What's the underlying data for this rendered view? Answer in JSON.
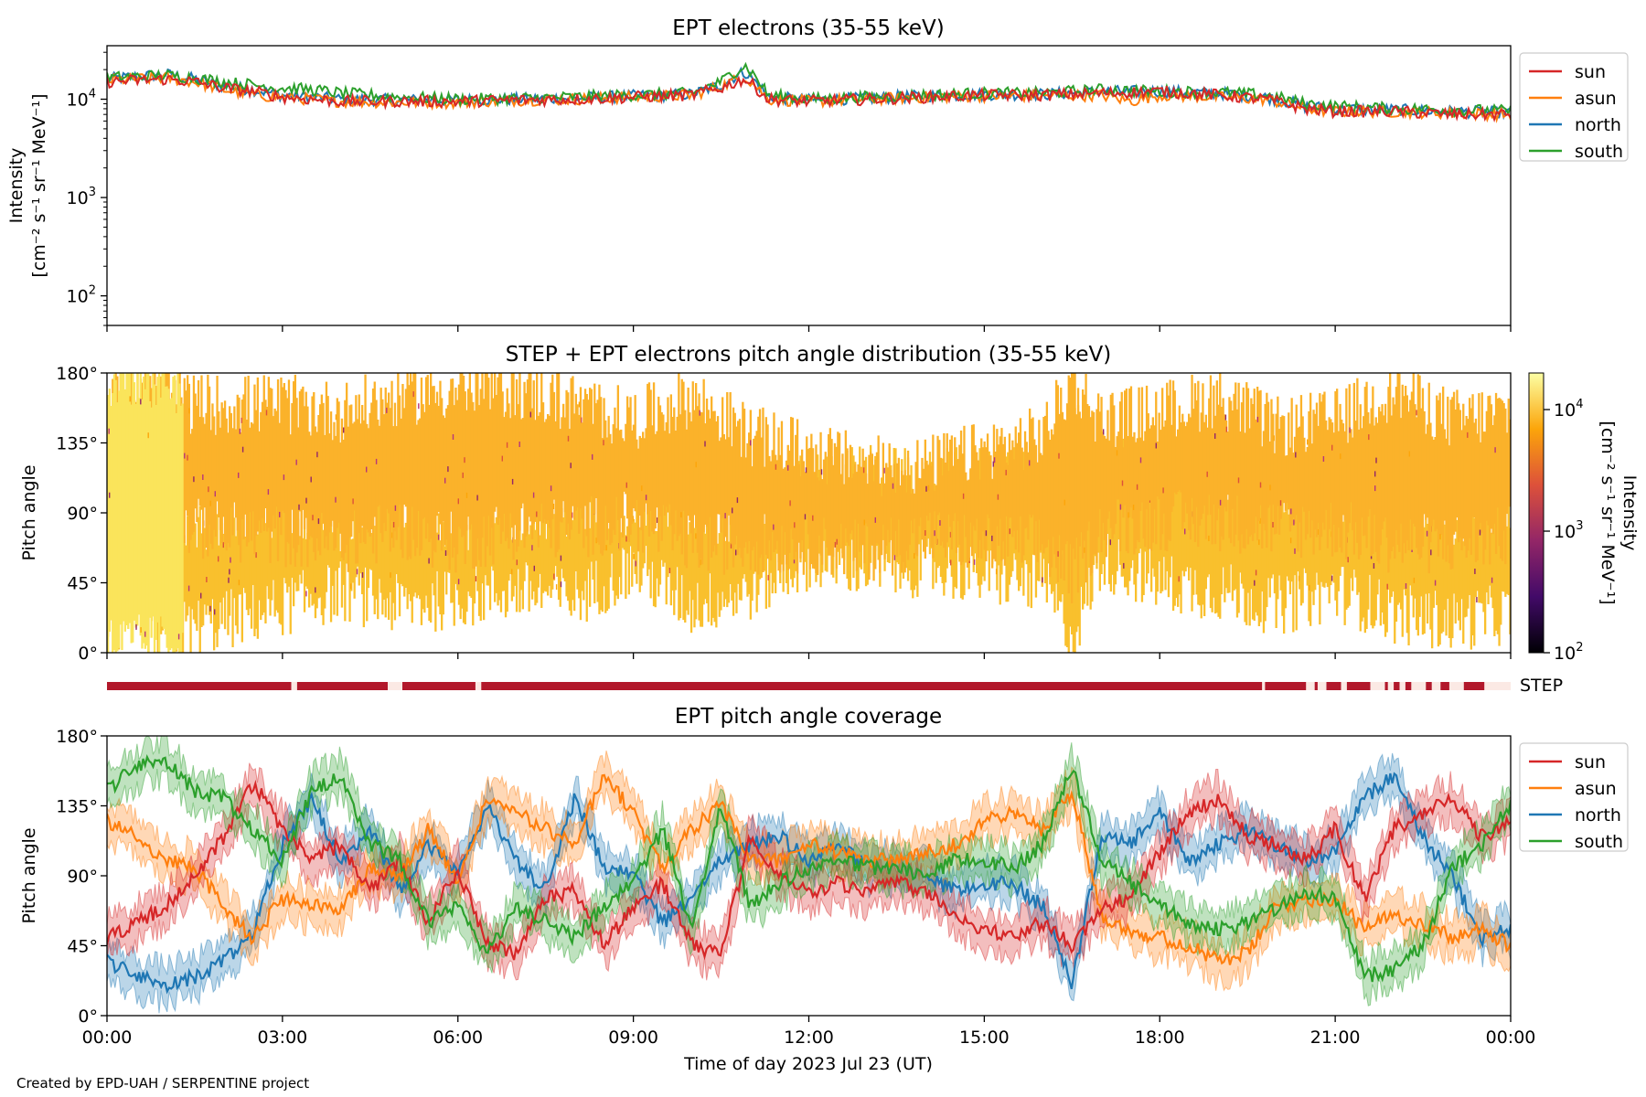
{
  "chart_data": [
    {
      "type": "line",
      "title": "EPT electrons (35-55 keV)",
      "ylabel_line1": "Intensity",
      "ylabel_line2": "[cm⁻² s⁻¹ sr⁻¹ MeV⁻¹]",
      "yscale": "log",
      "ylim": [
        50,
        35000
      ],
      "yticks": [
        {
          "value": 100,
          "base": "10",
          "exp": "2"
        },
        {
          "value": 1000,
          "base": "10",
          "exp": "3"
        },
        {
          "value": 10000,
          "base": "10",
          "exp": "4"
        }
      ],
      "xlim_hours": [
        0,
        24
      ],
      "legend": "upper-right-outside",
      "series": [
        {
          "name": "sun",
          "color": "#d62728",
          "x": [
            0,
            1,
            1.5,
            2,
            2.5,
            3,
            4,
            5,
            6,
            7,
            8,
            9,
            10,
            10.5,
            10.9,
            11.3,
            12,
            13,
            14,
            15,
            16,
            17,
            18,
            19,
            19.8,
            20.5,
            21,
            22,
            23,
            24
          ],
          "y": [
            15000,
            16000,
            15000,
            13000,
            12000,
            10500,
            9500,
            9500,
            9500,
            9800,
            10000,
            10500,
            11000,
            13000,
            16000,
            10000,
            9500,
            10000,
            10500,
            11000,
            11000,
            11500,
            12000,
            11000,
            10000,
            8000,
            7500,
            7500,
            7000,
            7000
          ]
        },
        {
          "name": "asun",
          "color": "#ff7f0e",
          "x": [
            0,
            1,
            1.5,
            2,
            2.5,
            3,
            4,
            5,
            6,
            7,
            8,
            9,
            10,
            10.5,
            10.9,
            11.3,
            12,
            13,
            14,
            15,
            16,
            17,
            17.5,
            18,
            19,
            19.8,
            20.5,
            21,
            22,
            23,
            24
          ],
          "y": [
            15500,
            16500,
            15000,
            12500,
            11000,
            10500,
            9500,
            9300,
            9300,
            9800,
            10000,
            10500,
            11000,
            13500,
            17000,
            10000,
            9500,
            10000,
            10500,
            10800,
            10800,
            11000,
            9500,
            11000,
            10500,
            10000,
            8000,
            7500,
            7500,
            7200,
            7000
          ]
        },
        {
          "name": "north",
          "color": "#1f77b4",
          "x": [
            0,
            1,
            1.5,
            2,
            2.5,
            3,
            4,
            5,
            6,
            7,
            8,
            9,
            10,
            10.5,
            10.9,
            11.3,
            12,
            13,
            14,
            15,
            16,
            17,
            18,
            19,
            19.8,
            20.5,
            21,
            22,
            23,
            24
          ],
          "y": [
            16000,
            18000,
            16000,
            13500,
            12500,
            11000,
            10000,
            9800,
            9800,
            10000,
            10200,
            10800,
            11200,
            14000,
            19000,
            10500,
            9800,
            10200,
            10800,
            11200,
            11200,
            12000,
            12000,
            11500,
            10500,
            8500,
            8000,
            7800,
            7500,
            7300
          ]
        },
        {
          "name": "south",
          "color": "#2ca02c",
          "x": [
            0,
            1,
            1.5,
            2,
            2.5,
            3,
            3.5,
            4,
            5,
            6,
            7,
            8,
            9,
            10,
            10.5,
            10.9,
            11.3,
            12,
            13,
            14,
            15,
            16,
            17,
            18,
            19,
            19.8,
            20.5,
            21,
            22,
            23,
            24
          ],
          "y": [
            16500,
            17500,
            16500,
            15000,
            14000,
            13000,
            12500,
            11500,
            10500,
            10000,
            10200,
            10500,
            11000,
            11500,
            15000,
            22000,
            11000,
            10000,
            10500,
            11000,
            11500,
            11500,
            12500,
            12000,
            11800,
            11000,
            9000,
            8500,
            8000,
            7800,
            7600
          ]
        }
      ]
    },
    {
      "type": "heatmap",
      "title": "STEP + EPT electrons pitch angle distribution (35-55 keV)",
      "ylabel": "Pitch angle",
      "ylim": [
        0,
        180
      ],
      "yticks": [
        "0°",
        "45°",
        "90°",
        "135°",
        "180°"
      ],
      "colorbar_label_line1": "Intensity",
      "colorbar_label_line2": "[cm⁻² s⁻¹ sr⁻¹ MeV⁻¹]",
      "colorbar_scale": "log",
      "colorbar_range": [
        100,
        20000
      ],
      "colorbar_ticks": [
        {
          "value": 100,
          "base": "10",
          "exp": "2"
        },
        {
          "value": 1000,
          "base": "10",
          "exp": "3"
        },
        {
          "value": 10000,
          "base": "10",
          "exp": "4"
        }
      ],
      "colormap_stops": [
        "#000004",
        "#420a68",
        "#932667",
        "#dd513a",
        "#fca50a",
        "#fcffa4"
      ],
      "bands": [
        {
          "name": "sun-band",
          "color": "#f9c02d",
          "x": [
            0,
            1.3,
            1.4,
            3,
            4,
            5,
            6,
            7,
            8,
            9,
            10,
            11,
            12,
            13,
            14,
            15,
            16,
            16.5,
            17,
            18,
            19,
            20,
            21,
            22,
            23,
            24
          ],
          "lo": [
            20,
            15,
            15,
            30,
            40,
            30,
            35,
            40,
            35,
            55,
            30,
            40,
            60,
            55,
            55,
            50,
            45,
            10,
            60,
            45,
            40,
            30,
            40,
            25,
            20,
            25
          ],
          "hi": [
            100,
            90,
            80,
            95,
            85,
            100,
            85,
            90,
            95,
            95,
            90,
            90,
            110,
            115,
            110,
            115,
            110,
            145,
            120,
            120,
            115,
            110,
            100,
            115,
            85,
            95
          ]
        },
        {
          "name": "asun-band",
          "color": "#fbb22a",
          "x": [
            0,
            1.3,
            1.4,
            3,
            4,
            5,
            6,
            7,
            8,
            9,
            10,
            11,
            12,
            13,
            14,
            15,
            16,
            16.5,
            17,
            18,
            19,
            20,
            21,
            22,
            23,
            24
          ],
          "lo": [
            85,
            85,
            80,
            75,
            70,
            80,
            70,
            80,
            80,
            85,
            70,
            70,
            70,
            65,
            75,
            70,
            70,
            50,
            80,
            85,
            85,
            80,
            80,
            70,
            70,
            75
          ],
          "hi": [
            165,
            170,
            160,
            160,
            155,
            165,
            170,
            170,
            160,
            150,
            165,
            140,
            130,
            120,
            120,
            130,
            140,
            175,
            150,
            155,
            165,
            145,
            150,
            170,
            150,
            155
          ]
        },
        {
          "name": "step-band",
          "color": "#fae45b",
          "x": [
            0,
            0.5,
            1,
            1.3
          ],
          "lo": [
            5,
            5,
            5,
            5
          ],
          "hi": [
            175,
            178,
            175,
            170
          ]
        }
      ],
      "step_coverage": {
        "label": "STEP",
        "color": "#b2182b",
        "segments_hours": [
          [
            0,
            3.15
          ],
          [
            3.25,
            4.8
          ],
          [
            5.05,
            6.3
          ],
          [
            6.4,
            19.75
          ],
          [
            19.8,
            20.5
          ],
          [
            20.65,
            20.7
          ],
          [
            20.85,
            21.1
          ],
          [
            21.2,
            21.6
          ],
          [
            21.85,
            21.9
          ],
          [
            22.0,
            22.1
          ],
          [
            22.2,
            22.3
          ],
          [
            22.55,
            22.65
          ],
          [
            22.8,
            22.95
          ],
          [
            23.2,
            23.55
          ]
        ]
      }
    },
    {
      "type": "line",
      "title": "EPT pitch angle coverage",
      "ylabel": "Pitch angle",
      "xlabel": "Time of day 2023 Jul 23 (UT)",
      "ylim": [
        0,
        180
      ],
      "yticks": [
        "0°",
        "45°",
        "90°",
        "135°",
        "180°"
      ],
      "xticks": [
        "00:00",
        "03:00",
        "06:00",
        "09:00",
        "12:00",
        "15:00",
        "18:00",
        "21:00",
        "00:00"
      ],
      "xlim_hours": [
        0,
        24
      ],
      "legend": "upper-right-outside",
      "series": [
        {
          "name": "sun",
          "color": "#d62728",
          "x": [
            0,
            0.5,
            1,
            1.5,
            2,
            2.5,
            3,
            3.5,
            4,
            4.5,
            5,
            5.5,
            6,
            6.5,
            7,
            7.5,
            8,
            8.5,
            9,
            9.5,
            10,
            10.5,
            11,
            11.5,
            12,
            12.5,
            13,
            13.5,
            14,
            14.5,
            15,
            15.5,
            16,
            16.5,
            17,
            17.5,
            18,
            18.5,
            19,
            19.5,
            20,
            20.5,
            21,
            21.5,
            22,
            22.5,
            23,
            23.5,
            24
          ],
          "y": [
            50,
            60,
            70,
            90,
            115,
            150,
            120,
            100,
            110,
            80,
            100,
            60,
            95,
            45,
            40,
            75,
            80,
            45,
            70,
            85,
            45,
            40,
            115,
            90,
            80,
            85,
            80,
            85,
            80,
            65,
            55,
            50,
            60,
            45,
            70,
            75,
            105,
            130,
            140,
            115,
            110,
            100,
            120,
            75,
            120,
            130,
            140,
            115,
            125
          ]
        },
        {
          "name": "asun",
          "color": "#ff7f0e",
          "x": [
            0,
            0.5,
            1,
            1.5,
            2,
            2.5,
            3,
            3.5,
            4,
            4.5,
            5,
            5.5,
            6,
            6.5,
            7,
            7.5,
            8,
            8.5,
            9,
            9.5,
            10,
            10.5,
            11,
            11.5,
            12,
            12.5,
            13,
            13.5,
            14,
            14.5,
            15,
            15.5,
            16,
            16.5,
            17,
            17.5,
            18,
            18.5,
            19,
            19.5,
            20,
            20.5,
            21,
            21.5,
            22,
            22.5,
            23,
            23.5,
            24
          ],
          "y": [
            125,
            115,
            100,
            95,
            70,
            50,
            75,
            70,
            70,
            95,
            90,
            120,
            85,
            140,
            130,
            120,
            110,
            155,
            130,
            95,
            120,
            135,
            100,
            100,
            110,
            105,
            100,
            100,
            105,
            110,
            125,
            130,
            120,
            145,
            65,
            55,
            50,
            45,
            35,
            40,
            70,
            75,
            75,
            55,
            65,
            60,
            50,
            55,
            45
          ]
        },
        {
          "name": "north",
          "color": "#1f77b4",
          "x": [
            0,
            0.5,
            1,
            1.5,
            2,
            2.5,
            3,
            3.5,
            4,
            4.5,
            5,
            5.5,
            6,
            6.5,
            7,
            7.5,
            8,
            8.5,
            9,
            9.5,
            10,
            10.5,
            11,
            11.5,
            12,
            12.5,
            13,
            13.5,
            14,
            14.5,
            15,
            15.5,
            16,
            16.5,
            17,
            17.5,
            18,
            18.5,
            19,
            19.5,
            20,
            20.5,
            21,
            21.5,
            22,
            22.5,
            23,
            23.5,
            24
          ],
          "y": [
            35,
            25,
            20,
            25,
            35,
            55,
            110,
            140,
            100,
            120,
            80,
            110,
            90,
            135,
            100,
            80,
            140,
            95,
            90,
            60,
            75,
            100,
            110,
            115,
            100,
            110,
            95,
            95,
            90,
            80,
            85,
            85,
            70,
            20,
            115,
            110,
            130,
            100,
            110,
            120,
            110,
            100,
            105,
            140,
            155,
            115,
            90,
            50,
            55
          ]
        },
        {
          "name": "south",
          "color": "#2ca02c",
          "x": [
            0,
            0.5,
            1,
            1.5,
            2,
            2.5,
            3,
            3.5,
            4,
            4.5,
            5,
            5.5,
            6,
            6.5,
            7,
            7.5,
            8,
            8.5,
            9,
            9.5,
            10,
            10.5,
            11,
            11.5,
            12,
            12.5,
            13,
            13.5,
            14,
            14.5,
            15,
            15.5,
            16,
            16.5,
            17,
            17.5,
            18,
            18.5,
            19,
            19.5,
            20,
            20.5,
            21,
            21.5,
            22,
            22.5,
            23,
            23.5,
            24
          ],
          "y": [
            145,
            160,
            165,
            145,
            140,
            120,
            100,
            145,
            155,
            110,
            100,
            60,
            70,
            40,
            70,
            60,
            50,
            70,
            85,
            120,
            55,
            135,
            70,
            85,
            95,
            100,
            95,
            95,
            90,
            100,
            100,
            95,
            110,
            160,
            100,
            85,
            70,
            60,
            55,
            60,
            70,
            80,
            75,
            25,
            30,
            45,
            95,
            110,
            135
          ]
        }
      ]
    }
  ],
  "footer": "Created by EPD-UAH / SERPENTINE project"
}
